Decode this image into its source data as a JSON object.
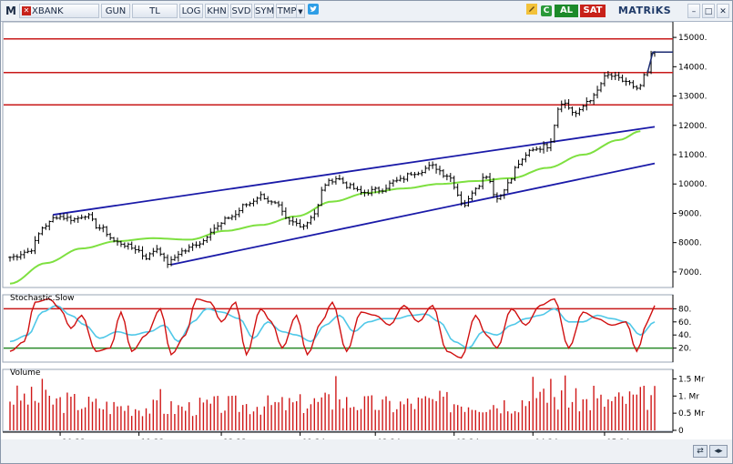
{
  "toolbar": {
    "logo": "M",
    "symbol": "XBANK",
    "period": "GUN",
    "currency": "TL",
    "buttons": [
      "LOG",
      "KHN",
      "SVD",
      "SYM",
      "TMP"
    ],
    "dropdown_icon": "triangle-down-icon",
    "twitter_icon": "twitter-bird-icon",
    "pen_icon": "pen-icon",
    "refresh_label": "C",
    "buy_label": "AL",
    "sell_label": "SAT",
    "brand": "MATRiKS",
    "window_controls": [
      "minimize-icon",
      "restore-icon",
      "close-icon"
    ]
  },
  "colors": {
    "price_bar": "#000000",
    "resistance": "#c81818",
    "trend": "#1a1aa8",
    "ma": "#7ee040",
    "stoch_k": "#d01010",
    "stoch_d": "#50c8e8",
    "stoch_upper_line": "#c81818",
    "stoch_lower_line": "#2a8a2a",
    "volume": "#d01818",
    "chart_bg": "#ffffff",
    "frame": "#9aa4b4"
  },
  "chart_data": [
    {
      "type": "ohlc",
      "series_keys": [
        "close",
        "ma"
      ],
      "y_ticks": [
        7000,
        8000,
        9000,
        10000,
        11000,
        12000,
        13000,
        14000,
        15000
      ],
      "y_tick_labels": [
        "7000.",
        "8000.",
        "9000.",
        "10000.",
        "11000.",
        "12000.",
        "13000.",
        "14000.",
        "15000."
      ],
      "ylim": [
        6500,
        15500
      ],
      "resistance_levels": [
        14950,
        13800,
        12700
      ],
      "trend_lines": [
        {
          "from": [
            12,
            8950
          ],
          "to": [
            180,
            11950
          ]
        },
        {
          "from": [
            45,
            7250
          ],
          "to": [
            180,
            10700
          ]
        }
      ],
      "close_anchors": [
        [
          0,
          7500
        ],
        [
          5,
          7700
        ],
        [
          10,
          8600
        ],
        [
          13,
          8900
        ],
        [
          18,
          8800
        ],
        [
          21,
          8950
        ],
        [
          25,
          8500
        ],
        [
          30,
          8000
        ],
        [
          35,
          7800
        ],
        [
          38,
          7500
        ],
        [
          41,
          7800
        ],
        [
          44,
          7300
        ],
        [
          48,
          7700
        ],
        [
          53,
          8000
        ],
        [
          57,
          8500
        ],
        [
          62,
          8900
        ],
        [
          66,
          9300
        ],
        [
          70,
          9600
        ],
        [
          74,
          9300
        ],
        [
          78,
          8700
        ],
        [
          82,
          8600
        ],
        [
          85,
          9000
        ],
        [
          88,
          10000
        ],
        [
          91,
          10200
        ],
        [
          95,
          9900
        ],
        [
          98,
          9700
        ],
        [
          103,
          9800
        ],
        [
          108,
          10100
        ],
        [
          113,
          10400
        ],
        [
          118,
          10600
        ],
        [
          122,
          10300
        ],
        [
          127,
          9300
        ],
        [
          130,
          9900
        ],
        [
          133,
          10300
        ],
        [
          136,
          9500
        ],
        [
          139,
          10000
        ],
        [
          142,
          10700
        ],
        [
          146,
          11200
        ],
        [
          150,
          11300
        ],
        [
          154,
          12800
        ],
        [
          158,
          12400
        ],
        [
          162,
          12900
        ],
        [
          167,
          13700
        ],
        [
          172,
          13500
        ],
        [
          175,
          13200
        ],
        [
          178,
          13800
        ],
        [
          179,
          14400
        ],
        [
          180,
          14500
        ]
      ],
      "ma_anchors": [
        [
          0,
          6600
        ],
        [
          10,
          7300
        ],
        [
          20,
          7800
        ],
        [
          30,
          8050
        ],
        [
          40,
          8150
        ],
        [
          50,
          8100
        ],
        [
          60,
          8400
        ],
        [
          70,
          8600
        ],
        [
          80,
          8900
        ],
        [
          90,
          9400
        ],
        [
          100,
          9700
        ],
        [
          110,
          9850
        ],
        [
          120,
          10000
        ],
        [
          130,
          10100
        ],
        [
          140,
          10200
        ],
        [
          150,
          10550
        ],
        [
          160,
          11000
        ],
        [
          170,
          11500
        ],
        [
          176,
          11800
        ]
      ],
      "points": 181
    },
    {
      "type": "line",
      "title": "Stochastic.Slow",
      "series": [
        {
          "name": "%K",
          "key": "k"
        },
        {
          "name": "%D",
          "key": "d"
        }
      ],
      "y_ticks": [
        20,
        40,
        60,
        80
      ],
      "y_tick_labels": [
        "20.",
        "40.",
        "60.",
        "80."
      ],
      "ylim": [
        0,
        100
      ],
      "upper_band": 80,
      "lower_band": 20,
      "k_anchors": [
        [
          0,
          15
        ],
        [
          4,
          30
        ],
        [
          7,
          90
        ],
        [
          11,
          95
        ],
        [
          14,
          80
        ],
        [
          17,
          50
        ],
        [
          20,
          70
        ],
        [
          24,
          15
        ],
        [
          28,
          20
        ],
        [
          31,
          75
        ],
        [
          34,
          15
        ],
        [
          38,
          40
        ],
        [
          42,
          80
        ],
        [
          45,
          10
        ],
        [
          49,
          40
        ],
        [
          52,
          95
        ],
        [
          56,
          90
        ],
        [
          59,
          60
        ],
        [
          63,
          90
        ],
        [
          66,
          10
        ],
        [
          70,
          80
        ],
        [
          73,
          60
        ],
        [
          76,
          20
        ],
        [
          80,
          70
        ],
        [
          83,
          10
        ],
        [
          87,
          60
        ],
        [
          90,
          90
        ],
        [
          94,
          15
        ],
        [
          98,
          75
        ],
        [
          102,
          70
        ],
        [
          106,
          55
        ],
        [
          110,
          85
        ],
        [
          114,
          60
        ],
        [
          118,
          85
        ],
        [
          122,
          15
        ],
        [
          126,
          5
        ],
        [
          130,
          70
        ],
        [
          133,
          40
        ],
        [
          136,
          20
        ],
        [
          140,
          80
        ],
        [
          144,
          55
        ],
        [
          148,
          85
        ],
        [
          152,
          95
        ],
        [
          156,
          20
        ],
        [
          160,
          75
        ],
        [
          164,
          65
        ],
        [
          168,
          55
        ],
        [
          172,
          60
        ],
        [
          175,
          15
        ],
        [
          178,
          60
        ],
        [
          180,
          85
        ]
      ],
      "d_anchors": [
        [
          0,
          30
        ],
        [
          5,
          40
        ],
        [
          9,
          75
        ],
        [
          13,
          85
        ],
        [
          17,
          70
        ],
        [
          21,
          55
        ],
        [
          25,
          35
        ],
        [
          30,
          45
        ],
        [
          34,
          40
        ],
        [
          39,
          45
        ],
        [
          43,
          55
        ],
        [
          47,
          30
        ],
        [
          51,
          60
        ],
        [
          55,
          80
        ],
        [
          59,
          75
        ],
        [
          64,
          65
        ],
        [
          68,
          35
        ],
        [
          72,
          60
        ],
        [
          76,
          45
        ],
        [
          80,
          40
        ],
        [
          84,
          30
        ],
        [
          88,
          55
        ],
        [
          92,
          70
        ],
        [
          96,
          45
        ],
        [
          100,
          60
        ],
        [
          104,
          65
        ],
        [
          108,
          65
        ],
        [
          112,
          70
        ],
        [
          116,
          72
        ],
        [
          120,
          60
        ],
        [
          124,
          30
        ],
        [
          128,
          20
        ],
        [
          132,
          45
        ],
        [
          136,
          40
        ],
        [
          140,
          55
        ],
        [
          144,
          65
        ],
        [
          148,
          70
        ],
        [
          152,
          80
        ],
        [
          156,
          60
        ],
        [
          160,
          60
        ],
        [
          164,
          70
        ],
        [
          168,
          65
        ],
        [
          172,
          60
        ],
        [
          176,
          40
        ],
        [
          180,
          60
        ]
      ]
    },
    {
      "type": "bar",
      "title": "Volume",
      "y_ticks": [
        0,
        500000,
        1000000,
        1500000
      ],
      "y_tick_labels": [
        "0",
        "0.5 Mr",
        "1. Mr",
        "1.5 Mr"
      ],
      "ylim": [
        0,
        1750000
      ],
      "volume_profile": [
        [
          0,
          1050000
        ],
        [
          15,
          900000
        ],
        [
          30,
          750000
        ],
        [
          45,
          700000
        ],
        [
          60,
          800000
        ],
        [
          75,
          800000
        ],
        [
          90,
          900000
        ],
        [
          105,
          800000
        ],
        [
          120,
          900000
        ],
        [
          135,
          850000
        ],
        [
          150,
          1000000
        ],
        [
          165,
          900000
        ],
        [
          180,
          1050000
        ]
      ],
      "volume_peaks": [
        [
          9,
          1500000
        ],
        [
          42,
          1200000
        ],
        [
          91,
          1580000
        ],
        [
          146,
          1560000
        ],
        [
          151,
          1500000
        ],
        [
          155,
          1600000
        ],
        [
          163,
          1300000
        ]
      ]
    }
  ],
  "x_axis": {
    "labels": [
      "10.23",
      "11.23",
      "12.23",
      "01.24",
      "02.24",
      "03.24",
      "04.24",
      "05.24"
    ],
    "label_points": [
      14,
      36,
      59,
      81,
      102,
      124,
      146,
      166
    ]
  }
}
